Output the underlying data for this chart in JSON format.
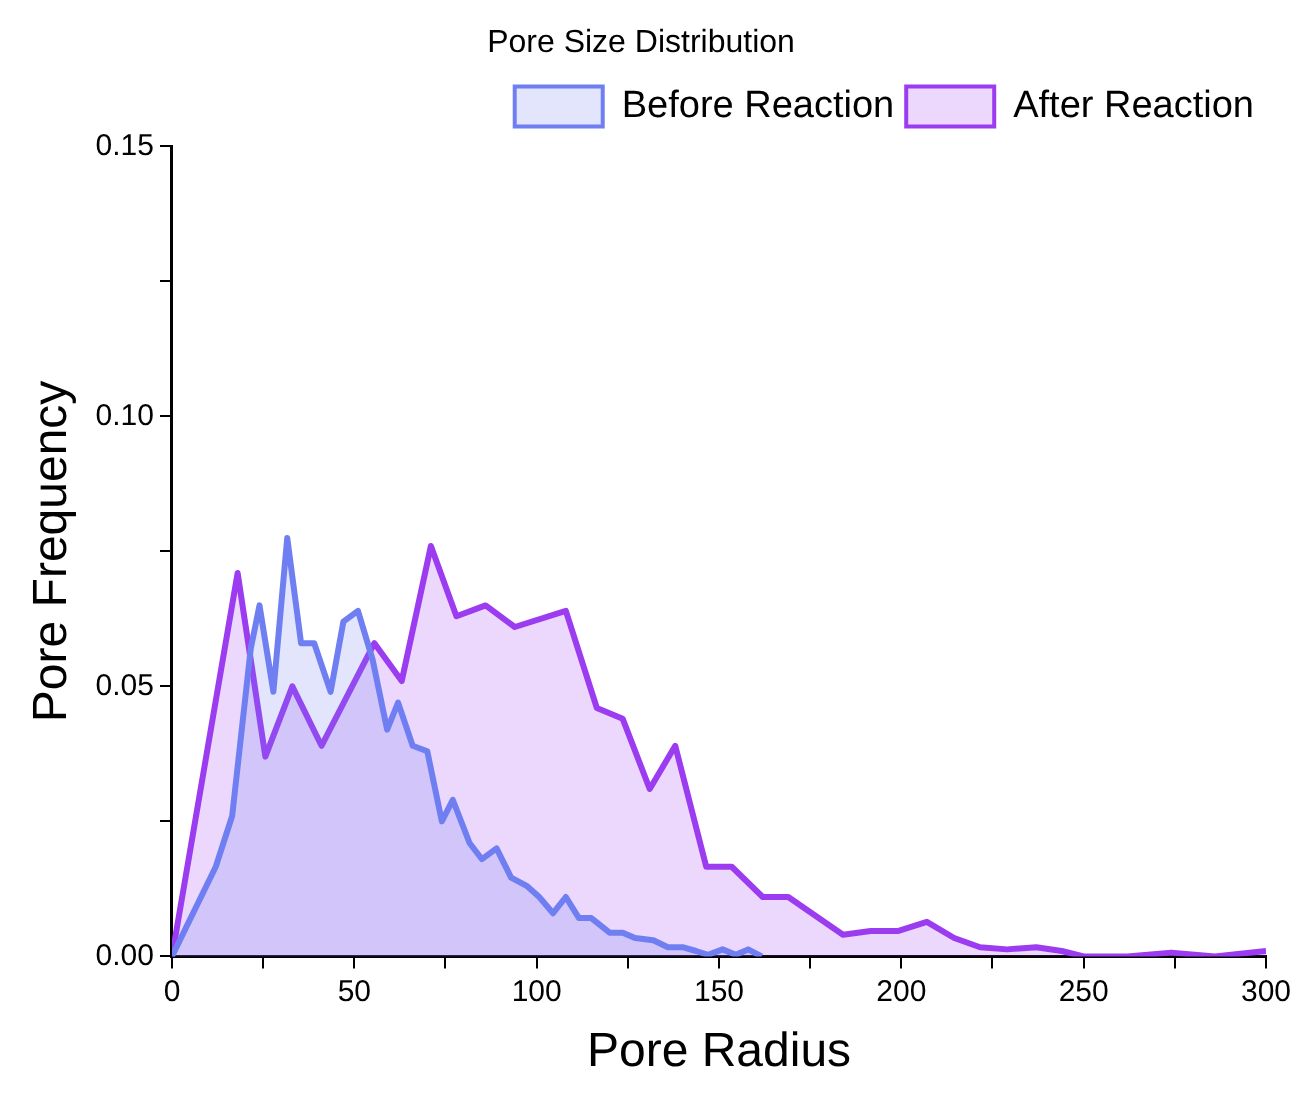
{
  "chart_data": {
    "type": "area",
    "title": "Pore Size Distribution",
    "xlabel": "Pore Radius",
    "ylabel": "Pore Frequency",
    "xlim": [
      0,
      300
    ],
    "ylim": [
      0,
      0.15
    ],
    "xticks": [
      0,
      {
        "value": 25,
        "label": null
      },
      50,
      {
        "value": 75,
        "label": null
      },
      100,
      {
        "value": 125,
        "label": null
      },
      150,
      {
        "value": 175,
        "label": null
      },
      200,
      {
        "value": 225,
        "label": null
      },
      250,
      {
        "value": 275,
        "label": null
      },
      300
    ],
    "yticks": [
      {
        "value": 0,
        "label": "0.00"
      },
      {
        "value": 0.025,
        "label": null
      },
      {
        "value": 0.05,
        "label": "0.05"
      },
      {
        "value": 0.075,
        "label": null
      },
      {
        "value": 0.1,
        "label": "0.10"
      },
      {
        "value": 0.125,
        "label": null
      },
      {
        "value": 0.15,
        "label": "0.15"
      }
    ],
    "grid": false,
    "legend": "top right",
    "series": [
      {
        "name": "Before Reaction",
        "color": "#6f7ff2",
        "x": [
          0,
          12,
          16.5,
          21.6,
          24,
          27.8,
          31.6,
          35.4,
          39,
          43.5,
          47,
          51,
          55,
          59,
          62,
          66,
          70,
          74,
          77,
          81.6,
          85,
          89,
          93,
          97.4,
          100.7,
          104.5,
          108,
          111.6,
          115,
          120,
          123.6,
          127,
          132,
          136,
          140,
          143.7,
          147,
          151,
          154.6,
          158,
          161.7
        ],
        "values": [
          0,
          0.0166,
          0.026,
          0.057,
          0.065,
          0.049,
          0.0775,
          0.058,
          0.058,
          0.049,
          0.062,
          0.064,
          0.055,
          0.042,
          0.047,
          0.039,
          0.038,
          0.025,
          0.029,
          0.021,
          0.018,
          0.02,
          0.0146,
          0.013,
          0.011,
          0.008,
          0.011,
          0.0071,
          0.0071,
          0.0044,
          0.0044,
          0.0034,
          0.003,
          0.0017,
          0.0017,
          0.001,
          0.0003,
          0.0013,
          0.0003,
          0.0013,
          0
        ]
      },
      {
        "name": "After Reaction",
        "color": "#9b3cf0",
        "x": [
          0,
          18,
          25.6,
          33,
          41,
          55.5,
          63,
          71,
          78,
          86,
          94,
          108,
          116.5,
          123.6,
          131,
          138,
          146.5,
          153.5,
          162,
          169,
          184,
          191.6,
          199,
          207,
          214.5,
          221.6,
          229,
          237,
          244,
          250,
          262,
          274,
          286,
          300
        ],
        "values": [
          0,
          0.071,
          0.037,
          0.05,
          0.039,
          0.058,
          0.051,
          0.076,
          0.063,
          0.065,
          0.061,
          0.064,
          0.046,
          0.044,
          0.031,
          0.039,
          0.0166,
          0.0166,
          0.011,
          0.011,
          0.004,
          0.0047,
          0.0047,
          0.0064,
          0.0034,
          0.0017,
          0.0013,
          0.0017,
          0.001,
          0,
          0,
          0.0007,
          0,
          0.001
        ]
      }
    ]
  }
}
